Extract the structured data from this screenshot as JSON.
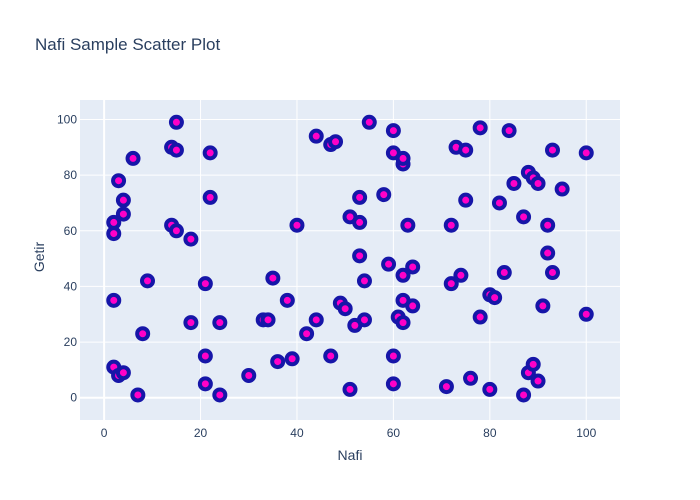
{
  "chart_data": {
    "type": "scatter",
    "title": "Nafi Sample Scatter Plot",
    "xlabel": "Nafi",
    "ylabel": "Getir",
    "xlim": [
      -5,
      107
    ],
    "ylim": [
      -8,
      107
    ],
    "xticks": [
      0,
      20,
      40,
      60,
      80,
      100
    ],
    "yticks": [
      0,
      20,
      40,
      60,
      80,
      100
    ],
    "grid": true,
    "marker": {
      "fill": "#ff00c8",
      "outline": "#1616a8"
    },
    "colors": {
      "plot_bg": "#e5ecf6",
      "grid": "#ffffff",
      "text": "#2a3f5f"
    },
    "points": [
      {
        "x": 2,
        "y": 11
      },
      {
        "x": 2,
        "y": 35
      },
      {
        "x": 2,
        "y": 59
      },
      {
        "x": 2,
        "y": 63
      },
      {
        "x": 3,
        "y": 8
      },
      {
        "x": 3,
        "y": 78
      },
      {
        "x": 4,
        "y": 9
      },
      {
        "x": 4,
        "y": 66
      },
      {
        "x": 4,
        "y": 71
      },
      {
        "x": 6,
        "y": 86
      },
      {
        "x": 7,
        "y": 1
      },
      {
        "x": 8,
        "y": 23
      },
      {
        "x": 9,
        "y": 42
      },
      {
        "x": 14,
        "y": 62
      },
      {
        "x": 14,
        "y": 90
      },
      {
        "x": 15,
        "y": 60
      },
      {
        "x": 15,
        "y": 89
      },
      {
        "x": 15,
        "y": 99
      },
      {
        "x": 18,
        "y": 27
      },
      {
        "x": 18,
        "y": 57
      },
      {
        "x": 21,
        "y": 5
      },
      {
        "x": 21,
        "y": 15
      },
      {
        "x": 21,
        "y": 41
      },
      {
        "x": 22,
        "y": 72
      },
      {
        "x": 22,
        "y": 88
      },
      {
        "x": 24,
        "y": 1
      },
      {
        "x": 24,
        "y": 27
      },
      {
        "x": 30,
        "y": 8
      },
      {
        "x": 33,
        "y": 28
      },
      {
        "x": 34,
        "y": 28
      },
      {
        "x": 35,
        "y": 43
      },
      {
        "x": 36,
        "y": 13
      },
      {
        "x": 38,
        "y": 35
      },
      {
        "x": 39,
        "y": 14
      },
      {
        "x": 40,
        "y": 62
      },
      {
        "x": 42,
        "y": 23
      },
      {
        "x": 44,
        "y": 28
      },
      {
        "x": 44,
        "y": 94
      },
      {
        "x": 47,
        "y": 15
      },
      {
        "x": 47,
        "y": 91
      },
      {
        "x": 48,
        "y": 92
      },
      {
        "x": 49,
        "y": 34
      },
      {
        "x": 50,
        "y": 32
      },
      {
        "x": 51,
        "y": 3
      },
      {
        "x": 51,
        "y": 65
      },
      {
        "x": 52,
        "y": 26
      },
      {
        "x": 53,
        "y": 51
      },
      {
        "x": 53,
        "y": 63
      },
      {
        "x": 53,
        "y": 72
      },
      {
        "x": 54,
        "y": 28
      },
      {
        "x": 54,
        "y": 42
      },
      {
        "x": 55,
        "y": 99
      },
      {
        "x": 58,
        "y": 73
      },
      {
        "x": 59,
        "y": 48
      },
      {
        "x": 60,
        "y": 5
      },
      {
        "x": 60,
        "y": 15
      },
      {
        "x": 60,
        "y": 88
      },
      {
        "x": 60,
        "y": 96
      },
      {
        "x": 61,
        "y": 29
      },
      {
        "x": 62,
        "y": 27
      },
      {
        "x": 62,
        "y": 35
      },
      {
        "x": 62,
        "y": 44
      },
      {
        "x": 62,
        "y": 84
      },
      {
        "x": 62,
        "y": 86
      },
      {
        "x": 63,
        "y": 62
      },
      {
        "x": 64,
        "y": 33
      },
      {
        "x": 64,
        "y": 47
      },
      {
        "x": 71,
        "y": 4
      },
      {
        "x": 72,
        "y": 41
      },
      {
        "x": 72,
        "y": 62
      },
      {
        "x": 73,
        "y": 90
      },
      {
        "x": 74,
        "y": 44
      },
      {
        "x": 75,
        "y": 71
      },
      {
        "x": 75,
        "y": 89
      },
      {
        "x": 76,
        "y": 7
      },
      {
        "x": 78,
        "y": 29
      },
      {
        "x": 78,
        "y": 97
      },
      {
        "x": 80,
        "y": 3
      },
      {
        "x": 80,
        "y": 37
      },
      {
        "x": 81,
        "y": 36
      },
      {
        "x": 82,
        "y": 70
      },
      {
        "x": 83,
        "y": 45
      },
      {
        "x": 84,
        "y": 96
      },
      {
        "x": 85,
        "y": 77
      },
      {
        "x": 87,
        "y": 1
      },
      {
        "x": 87,
        "y": 65
      },
      {
        "x": 88,
        "y": 9
      },
      {
        "x": 88,
        "y": 81
      },
      {
        "x": 89,
        "y": 12
      },
      {
        "x": 89,
        "y": 79
      },
      {
        "x": 90,
        "y": 6
      },
      {
        "x": 90,
        "y": 77
      },
      {
        "x": 91,
        "y": 33
      },
      {
        "x": 92,
        "y": 52
      },
      {
        "x": 92,
        "y": 62
      },
      {
        "x": 93,
        "y": 45
      },
      {
        "x": 93,
        "y": 89
      },
      {
        "x": 95,
        "y": 75
      },
      {
        "x": 100,
        "y": 30
      },
      {
        "x": 100,
        "y": 88
      }
    ]
  }
}
